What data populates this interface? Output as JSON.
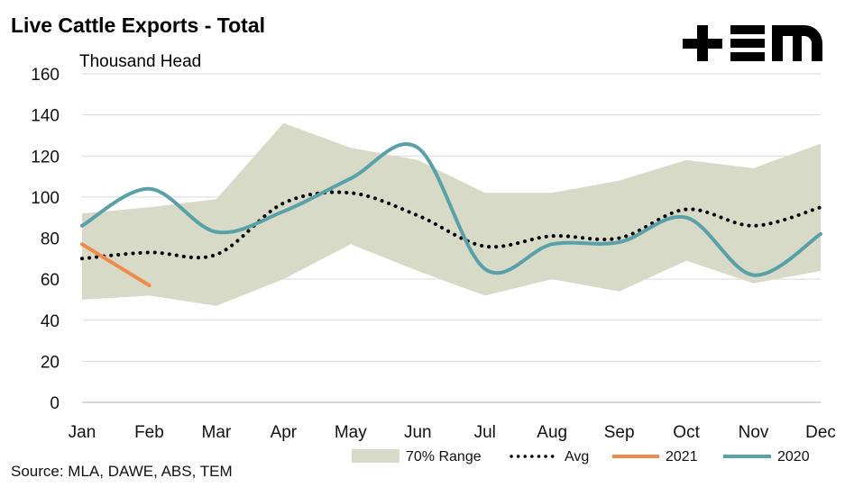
{
  "brand": {
    "logo_text": "+EM"
  },
  "chart_data": {
    "type": "line",
    "title": "Live Cattle Exports - Total",
    "ylabel": "Thousand Head",
    "categories": [
      "Jan",
      "Feb",
      "Mar",
      "Apr",
      "May",
      "Jun",
      "Jul",
      "Aug",
      "Sep",
      "Oct",
      "Nov",
      "Dec"
    ],
    "ylim": [
      0,
      160
    ],
    "yticks": [
      "0",
      "20",
      "40",
      "60",
      "80",
      "100",
      "120",
      "140",
      "160"
    ],
    "grid": true,
    "legend_position": "bottom-right",
    "range": {
      "name": "70% Range",
      "upper": [
        92,
        95,
        99,
        136,
        124,
        118,
        102,
        102,
        108,
        118,
        114,
        126
      ],
      "lower": [
        50,
        52,
        47,
        60,
        77,
        64,
        52,
        60,
        54,
        69,
        58,
        64
      ],
      "color": "#d8dac8"
    },
    "series": [
      {
        "name": "Avg",
        "values": [
          70,
          73,
          72,
          97,
          102,
          91,
          76,
          81,
          80,
          94,
          86,
          95
        ],
        "color": "#000000",
        "style": "dotted"
      },
      {
        "name": "2021",
        "values": [
          77,
          57,
          null,
          null,
          null,
          null,
          null,
          null,
          null,
          null,
          null,
          null
        ],
        "color": "#f08a4b",
        "style": "solid"
      },
      {
        "name": "2020",
        "values": [
          86,
          104,
          83,
          93,
          109,
          124,
          65,
          77,
          78,
          90,
          62,
          82
        ],
        "color": "#5aa0a8",
        "style": "solid"
      }
    ],
    "source": "Source: MLA, DAWE, ABS, TEM"
  }
}
